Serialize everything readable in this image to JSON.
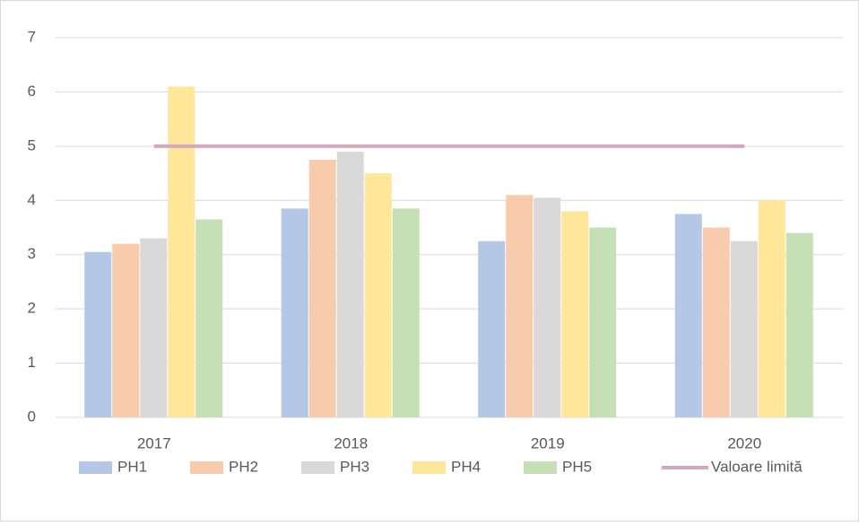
{
  "chart_data": {
    "type": "bar",
    "categories": [
      "2017",
      "2018",
      "2019",
      "2020"
    ],
    "series": [
      {
        "name": "PH1",
        "color": "#b4c7e7",
        "values": [
          3.05,
          3.85,
          3.25,
          3.75
        ]
      },
      {
        "name": "PH2",
        "color": "#f8cbad",
        "values": [
          3.2,
          4.75,
          4.1,
          3.5
        ]
      },
      {
        "name": "PH3",
        "color": "#d9d9d9",
        "values": [
          3.3,
          4.9,
          4.05,
          3.25
        ]
      },
      {
        "name": "PH4",
        "color": "#ffe699",
        "values": [
          6.1,
          4.5,
          3.8,
          4.0
        ]
      },
      {
        "name": "PH5",
        "color": "#c5e0b4",
        "values": [
          3.65,
          3.85,
          3.5,
          3.4
        ]
      },
      {
        "name": "Valoare limită",
        "type": "line",
        "color": "#d5a6bd",
        "values": [
          5,
          5,
          5,
          5
        ]
      }
    ],
    "ylim": [
      0,
      7
    ],
    "yticks": [
      0,
      1,
      2,
      3,
      4,
      5,
      6,
      7
    ],
    "grid": true,
    "legend": "bottom"
  }
}
